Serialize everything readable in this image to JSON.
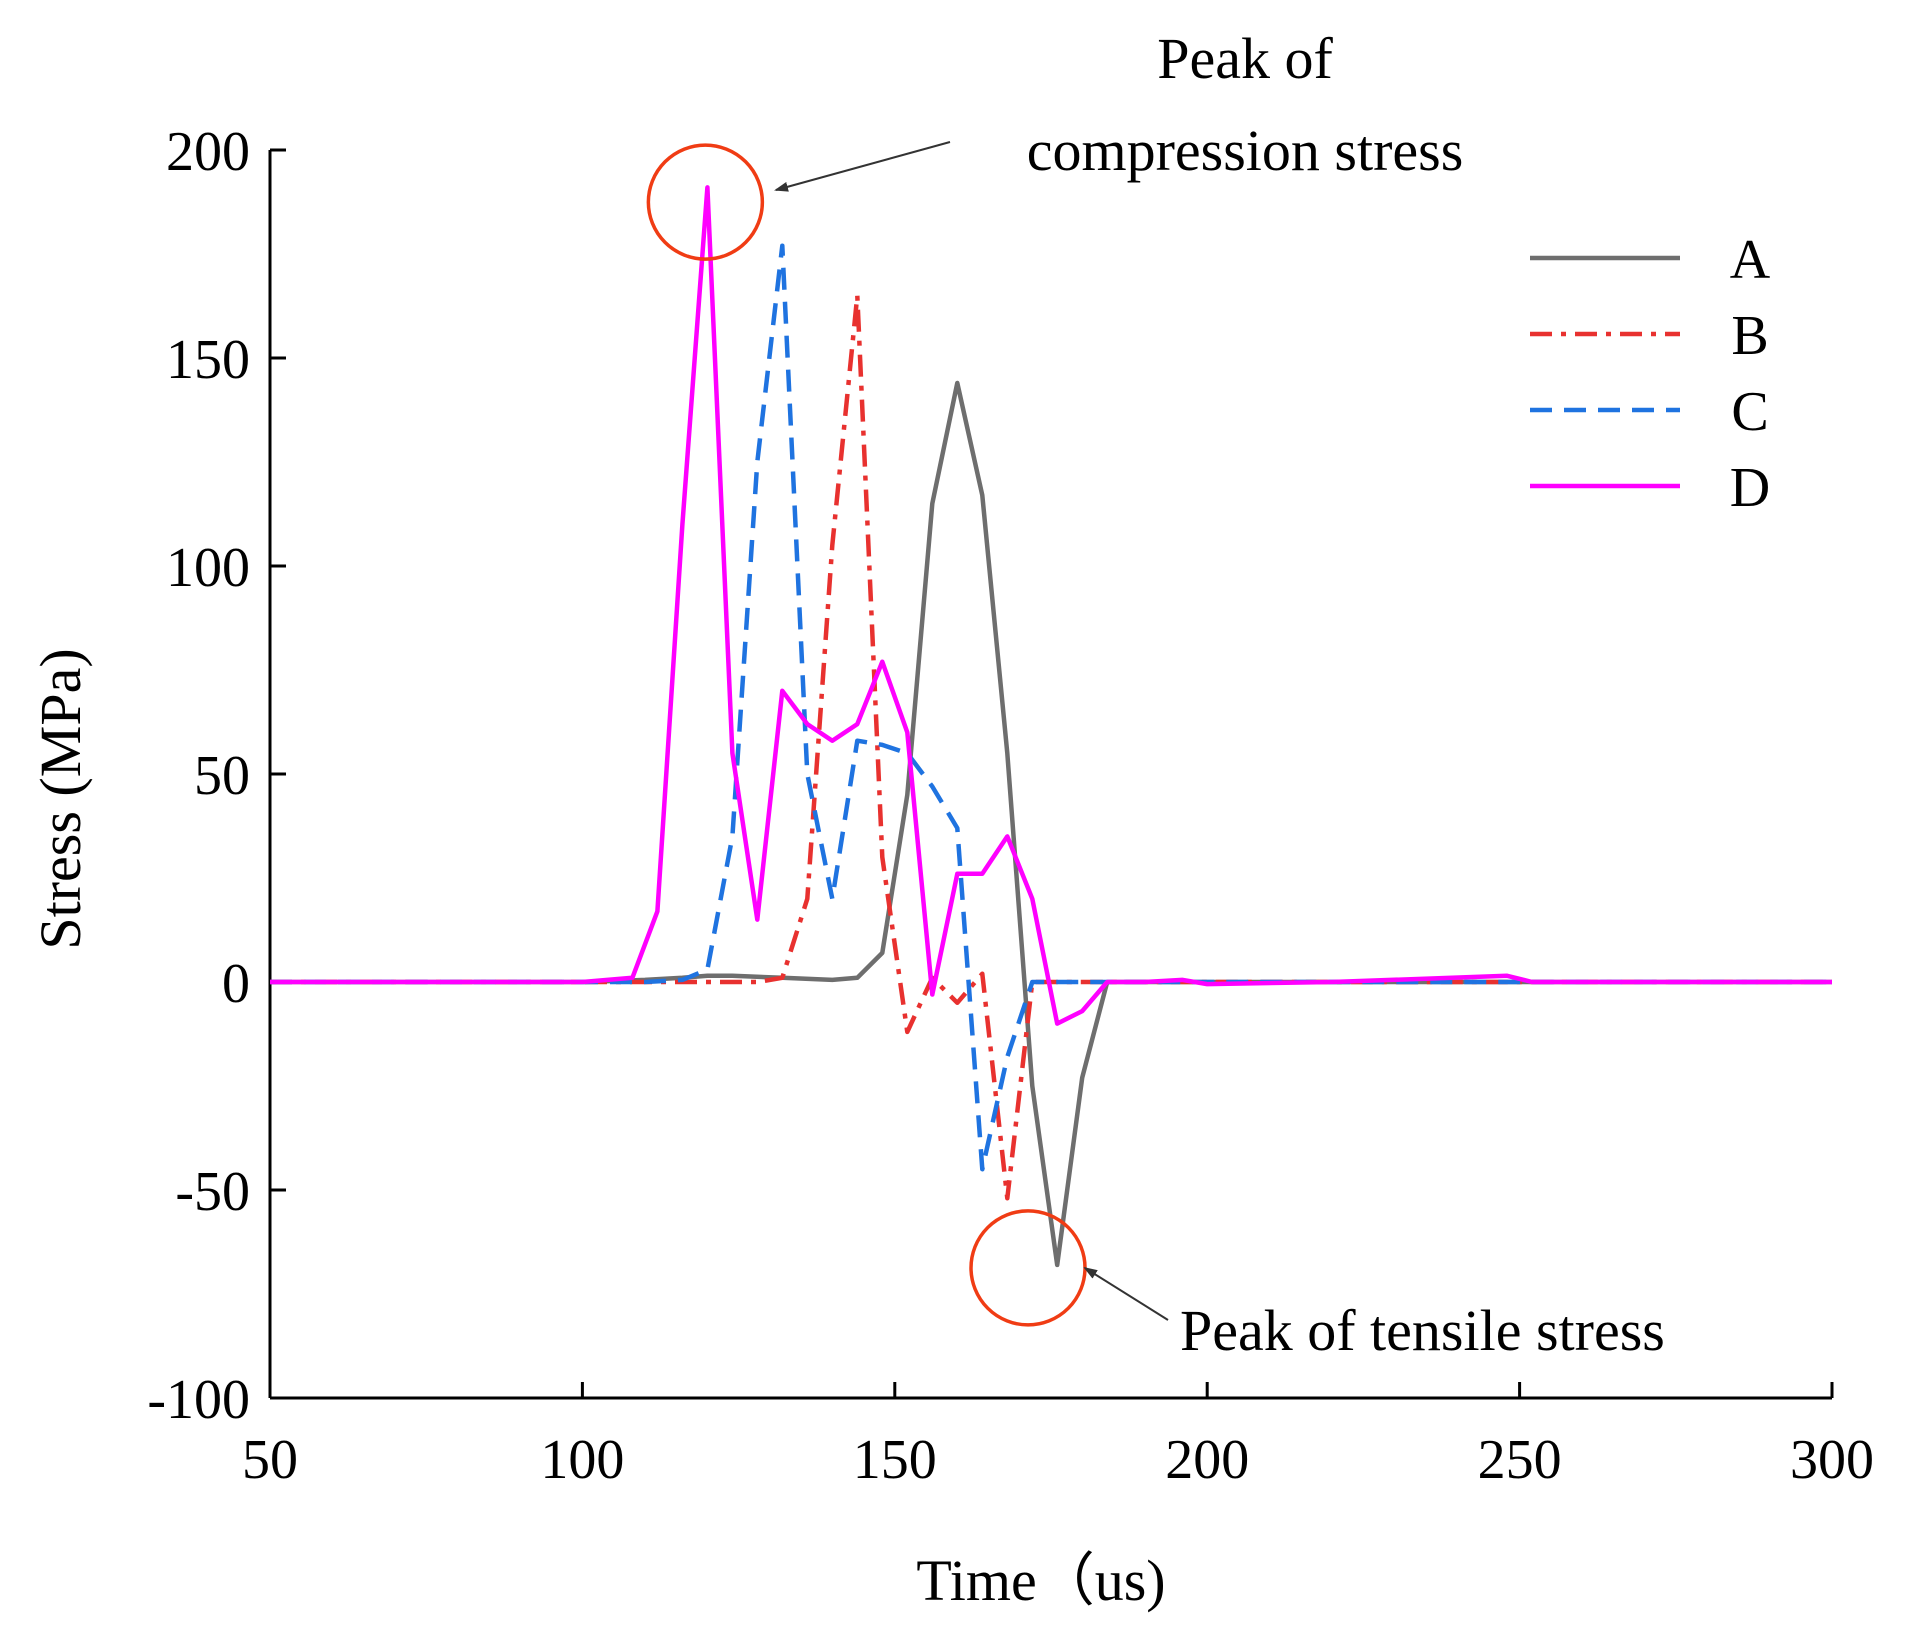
{
  "chart_data": {
    "type": "line",
    "title": "",
    "xlabel": "Time（us)",
    "ylabel": "Stress (MPa)",
    "xlim": [
      50,
      300
    ],
    "ylim": [
      -100,
      200
    ],
    "xticks": [
      50,
      100,
      150,
      200,
      250,
      300
    ],
    "yticks": [
      -100,
      -50,
      0,
      50,
      100,
      150,
      200
    ],
    "grid": false,
    "legend_position": "top-right",
    "series": [
      {
        "name": "A",
        "color": "#6e6e6e",
        "dash": "solid",
        "x": [
          50,
          60,
          80,
          100,
          110,
          116,
          120,
          124,
          132,
          140,
          144,
          148,
          152,
          156,
          160,
          164,
          168,
          172,
          176,
          180,
          184,
          190,
          200,
          220,
          250,
          300
        ],
        "y": [
          0,
          0,
          0,
          0,
          0.5,
          1,
          1.5,
          1.5,
          1,
          0.5,
          1,
          7,
          45,
          115,
          144,
          117,
          55,
          -25,
          -68,
          -23,
          0,
          0,
          0,
          0,
          0,
          0
        ]
      },
      {
        "name": "B",
        "color": "#e8312f",
        "dash": "dash-dot",
        "x": [
          50,
          80,
          110,
          120,
          128,
          132,
          136,
          140,
          144,
          148,
          152,
          156,
          160,
          164,
          168,
          172,
          176,
          200,
          250,
          300
        ],
        "y": [
          0,
          0,
          0,
          0,
          0,
          1,
          20,
          105,
          165,
          30,
          -12,
          1,
          -5,
          2,
          -52,
          0,
          0,
          0,
          0,
          0
        ]
      },
      {
        "name": "C",
        "color": "#1f73e0",
        "dash": "dashed",
        "x": [
          50,
          80,
          110,
          116,
          120,
          124,
          128,
          132,
          136,
          140,
          144,
          148,
          152,
          156,
          160,
          164,
          168,
          172,
          176,
          200,
          250,
          300
        ],
        "y": [
          0,
          0,
          0,
          0.5,
          3,
          35,
          125,
          177,
          50,
          20,
          58,
          57,
          55,
          47,
          37,
          -45,
          -18,
          0,
          0,
          0,
          0,
          0
        ]
      },
      {
        "name": "D",
        "color": "#ff00ff",
        "dash": "solid",
        "x": [
          50,
          80,
          100,
          108,
          112,
          116,
          120,
          124,
          128,
          132,
          136,
          140,
          144,
          148,
          152,
          156,
          160,
          164,
          168,
          172,
          176,
          180,
          184,
          190,
          196,
          200,
          220,
          248,
          252,
          300
        ],
        "y": [
          0,
          0,
          0,
          1,
          17,
          110,
          191,
          55,
          15,
          70,
          62,
          58,
          62,
          77,
          60,
          -3,
          26,
          26,
          35,
          20,
          -10,
          -7,
          0,
          0,
          0.5,
          -0.5,
          0,
          1.5,
          0,
          0
        ]
      }
    ],
    "annotations": [
      {
        "text_lines": [
          "Peak of",
          "compression stress"
        ],
        "target": [
          120,
          187
        ]
      },
      {
        "text_lines": [
          "Peak of tensile stress"
        ],
        "target": [
          171,
          -68
        ]
      }
    ]
  }
}
